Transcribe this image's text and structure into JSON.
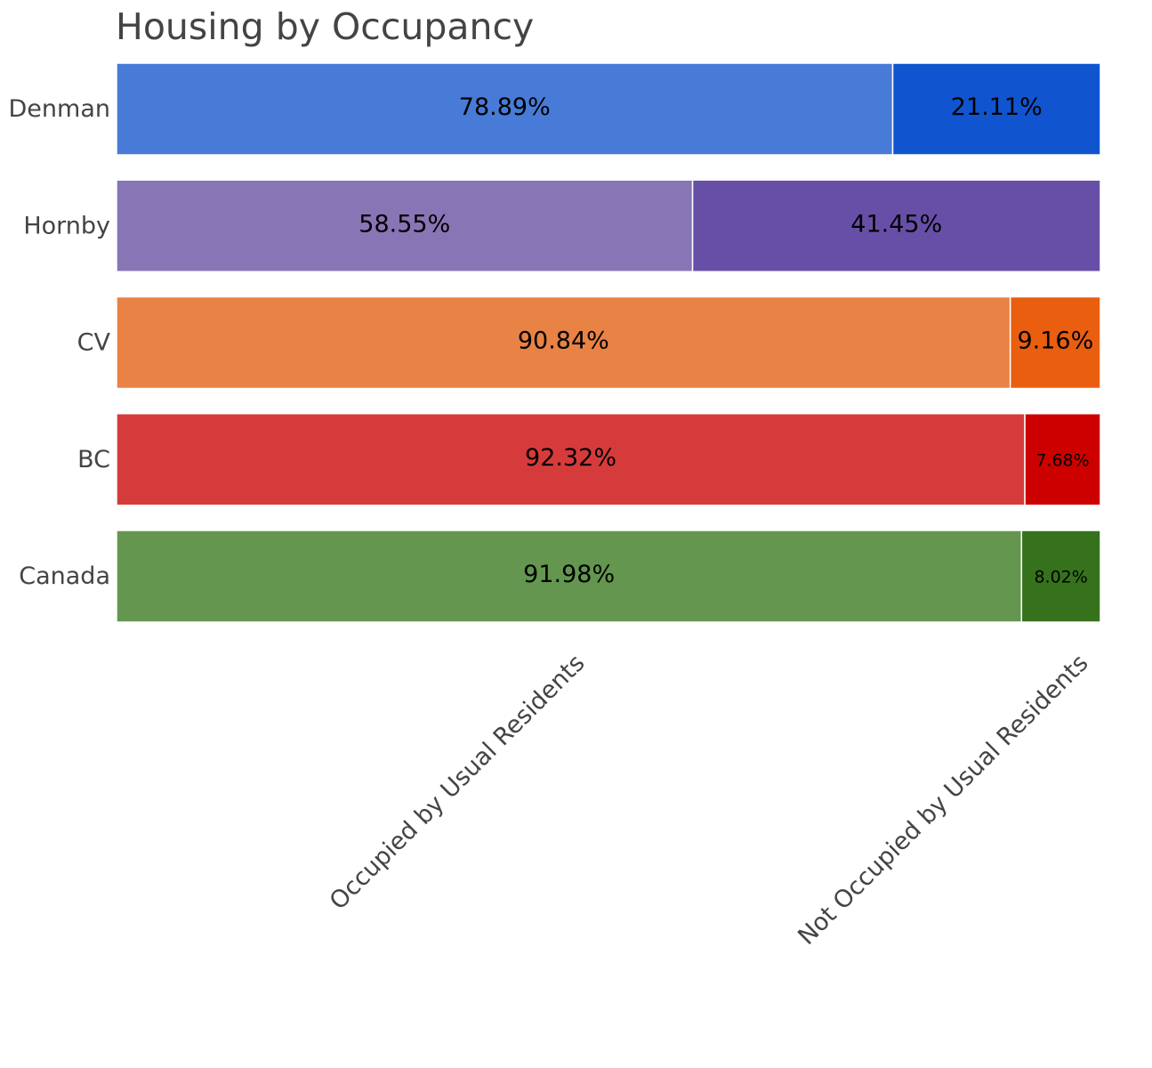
{
  "chart_data": {
    "type": "bar",
    "orientation": "horizontal",
    "stacked": true,
    "title": "Housing by Occupancy",
    "xlabel": "",
    "ylabel": "",
    "xlim": [
      0,
      100
    ],
    "grid": false,
    "categories": [
      "Denman",
      "Hornby",
      "CV",
      "BC",
      "Canada"
    ],
    "segment_labels": [
      "Occupied by Usual Residents",
      "Not Occupied by Usual Residents"
    ],
    "rows": [
      {
        "name": "Denman",
        "values": [
          78.89,
          21.11
        ],
        "labels": [
          "78.89%",
          "21.11%"
        ],
        "colors": [
          "#487bd7",
          "#1055cf"
        ]
      },
      {
        "name": "Hornby",
        "values": [
          58.55,
          41.45
        ],
        "labels": [
          "58.55%",
          "41.45%"
        ],
        "colors": [
          "#8875b6",
          "#674fa8"
        ]
      },
      {
        "name": "CV",
        "values": [
          90.84,
          9.16
        ],
        "labels": [
          "90.84%",
          "9.16%"
        ],
        "colors": [
          "#e98245",
          "#e95e0f"
        ]
      },
      {
        "name": "BC",
        "values": [
          92.32,
          7.68
        ],
        "labels": [
          "92.32%",
          "7.68%"
        ],
        "colors": [
          "#d63b3b",
          "#cd0000"
        ]
      },
      {
        "name": "Canada",
        "values": [
          91.98,
          8.02
        ],
        "labels": [
          "91.98%",
          "8.02%"
        ],
        "colors": [
          "#64964f",
          "#36721c"
        ]
      }
    ]
  }
}
